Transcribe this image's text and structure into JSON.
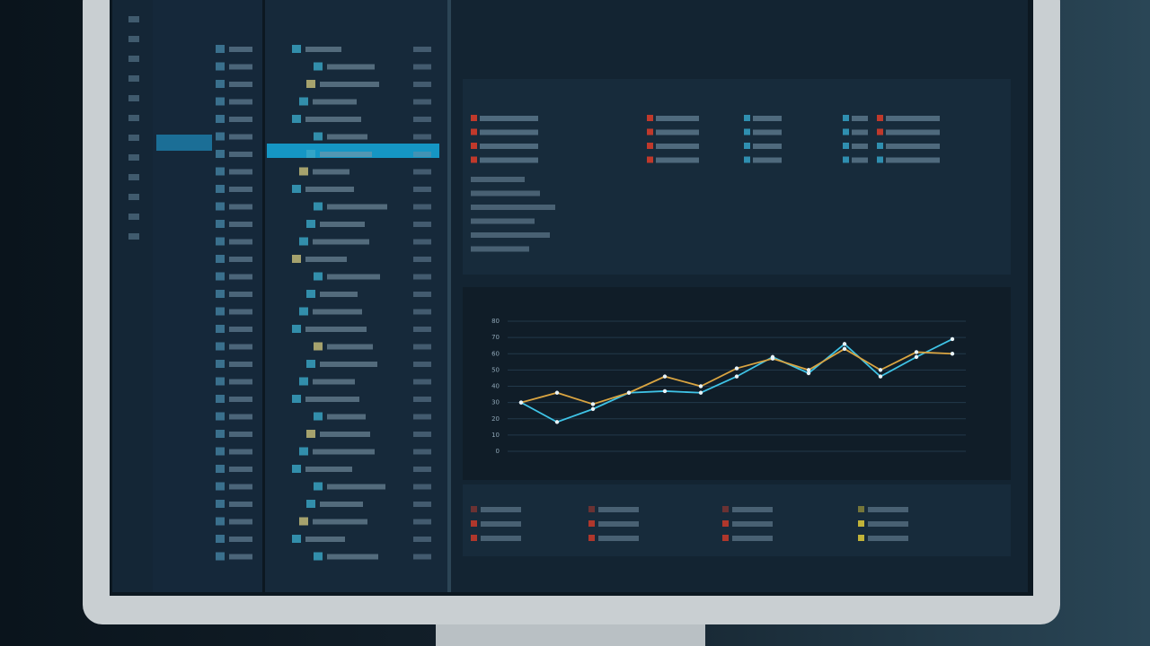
{
  "chart_data": {
    "type": "line",
    "categories": [
      null,
      null,
      null,
      null,
      null,
      null,
      null,
      null,
      null,
      null,
      null,
      null,
      null
    ],
    "series": [
      {
        "color": "#3fc3e6",
        "values": [
          30,
          18,
          26,
          36,
          37,
          36,
          46,
          58,
          48,
          66,
          46,
          58,
          69
        ]
      },
      {
        "color": "#d9a441",
        "values": [
          30,
          36,
          29,
          36,
          46,
          40,
          51,
          57,
          50,
          63,
          50,
          61,
          60
        ]
      }
    ],
    "ylim": [
      0,
      80
    ],
    "yticks": [
      0,
      10,
      20,
      30,
      40,
      50,
      60,
      70,
      80
    ],
    "grid": true
  }
}
